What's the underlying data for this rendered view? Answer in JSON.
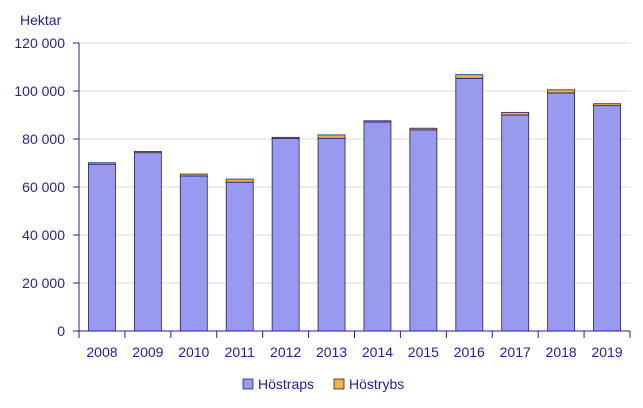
{
  "chart_data": {
    "type": "bar",
    "stacked": true,
    "ylabel": "Hektar",
    "ylim": [
      0,
      120000
    ],
    "yticks": [
      0,
      20000,
      40000,
      60000,
      80000,
      100000,
      120000
    ],
    "ytick_labels": [
      "0",
      "20 000",
      "40 000",
      "60 000",
      "80 000",
      "100 000",
      "120 000"
    ],
    "grid": true,
    "legend_position": "bottom",
    "categories": [
      "2008",
      "2009",
      "2010",
      "2011",
      "2012",
      "2013",
      "2014",
      "2015",
      "2016",
      "2017",
      "2018",
      "2019"
    ],
    "series": [
      {
        "name": "Höstraps",
        "color": "#9999f0",
        "values": [
          69500,
          74300,
          64600,
          62000,
          80200,
          80300,
          87100,
          83800,
          105300,
          90000,
          99200,
          93900
        ]
      },
      {
        "name": "Höstrybs",
        "color": "#f5b042",
        "values": [
          600,
          500,
          800,
          1300,
          500,
          1400,
          500,
          700,
          1500,
          1100,
          1300,
          800
        ]
      }
    ]
  }
}
